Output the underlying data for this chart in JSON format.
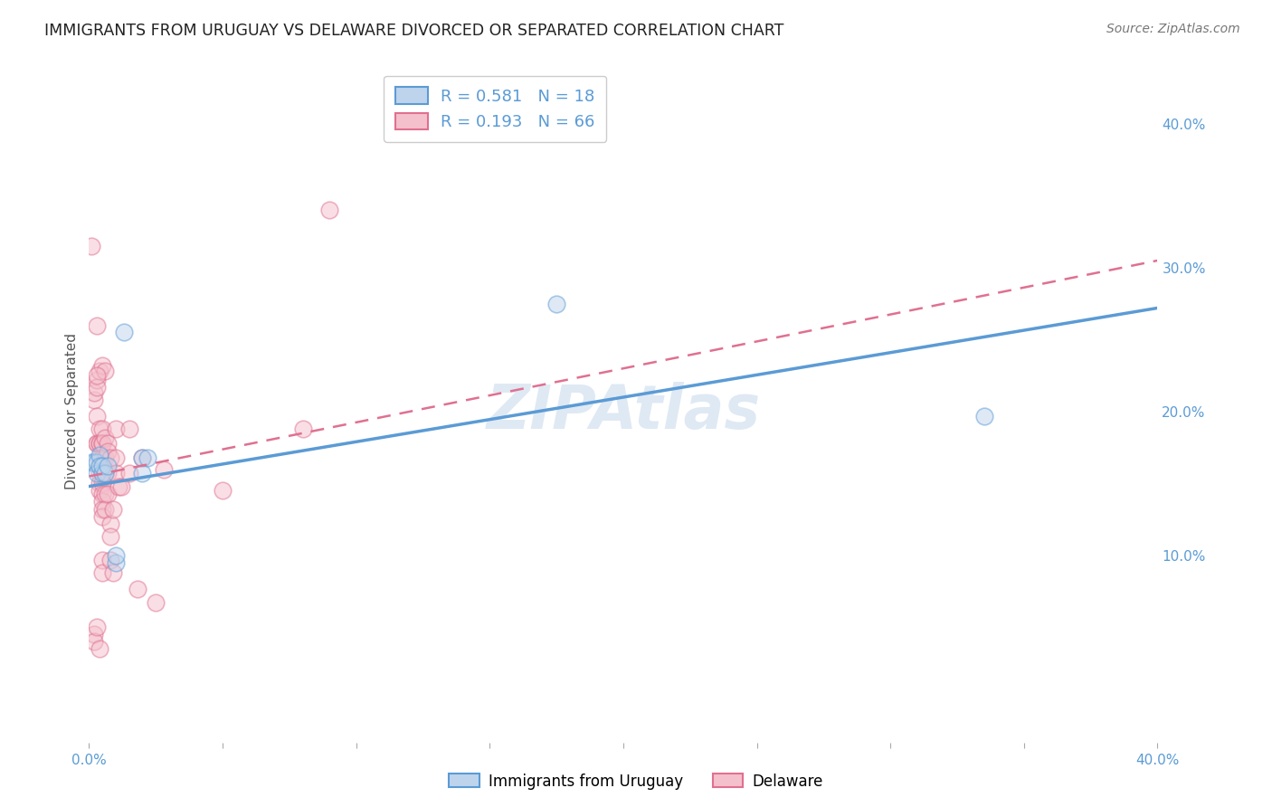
{
  "title": "IMMIGRANTS FROM URUGUAY VS DELAWARE DIVORCED OR SEPARATED CORRELATION CHART",
  "source": "Source: ZipAtlas.com",
  "ylabel": "Divorced or Separated",
  "xlim": [
    0.0,
    0.4
  ],
  "ylim": [
    -0.03,
    0.43
  ],
  "x_ticks": [
    0.0,
    0.05,
    0.1,
    0.15,
    0.2,
    0.25,
    0.3,
    0.35,
    0.4
  ],
  "y_ticks_right": [
    0.1,
    0.2,
    0.3,
    0.4
  ],
  "y_tick_labels_right": [
    "10.0%",
    "20.0%",
    "30.0%",
    "40.0%"
  ],
  "watermark": "ZIPAtlas",
  "blue_scatter": [
    [
      0.001,
      0.165
    ],
    [
      0.002,
      0.165
    ],
    [
      0.003,
      0.165
    ],
    [
      0.003,
      0.157
    ],
    [
      0.004,
      0.17
    ],
    [
      0.004,
      0.162
    ],
    [
      0.005,
      0.157
    ],
    [
      0.005,
      0.162
    ],
    [
      0.006,
      0.157
    ],
    [
      0.007,
      0.162
    ],
    [
      0.01,
      0.095
    ],
    [
      0.01,
      0.1
    ],
    [
      0.013,
      0.255
    ],
    [
      0.02,
      0.168
    ],
    [
      0.02,
      0.157
    ],
    [
      0.022,
      0.168
    ],
    [
      0.175,
      0.275
    ],
    [
      0.335,
      0.197
    ]
  ],
  "pink_scatter": [
    [
      0.001,
      0.315
    ],
    [
      0.002,
      0.208
    ],
    [
      0.002,
      0.213
    ],
    [
      0.003,
      0.222
    ],
    [
      0.003,
      0.217
    ],
    [
      0.003,
      0.197
    ],
    [
      0.003,
      0.178
    ],
    [
      0.003,
      0.178
    ],
    [
      0.004,
      0.228
    ],
    [
      0.004,
      0.188
    ],
    [
      0.004,
      0.178
    ],
    [
      0.004,
      0.178
    ],
    [
      0.004,
      0.168
    ],
    [
      0.004,
      0.162
    ],
    [
      0.004,
      0.157
    ],
    [
      0.004,
      0.15
    ],
    [
      0.004,
      0.145
    ],
    [
      0.005,
      0.232
    ],
    [
      0.005,
      0.188
    ],
    [
      0.005,
      0.178
    ],
    [
      0.005,
      0.178
    ],
    [
      0.005,
      0.168
    ],
    [
      0.005,
      0.157
    ],
    [
      0.005,
      0.15
    ],
    [
      0.005,
      0.143
    ],
    [
      0.005,
      0.138
    ],
    [
      0.005,
      0.132
    ],
    [
      0.005,
      0.127
    ],
    [
      0.005,
      0.097
    ],
    [
      0.005,
      0.088
    ],
    [
      0.006,
      0.228
    ],
    [
      0.006,
      0.182
    ],
    [
      0.006,
      0.168
    ],
    [
      0.006,
      0.157
    ],
    [
      0.006,
      0.143
    ],
    [
      0.006,
      0.132
    ],
    [
      0.007,
      0.178
    ],
    [
      0.007,
      0.172
    ],
    [
      0.007,
      0.157
    ],
    [
      0.007,
      0.143
    ],
    [
      0.008,
      0.168
    ],
    [
      0.008,
      0.122
    ],
    [
      0.008,
      0.113
    ],
    [
      0.008,
      0.097
    ],
    [
      0.009,
      0.132
    ],
    [
      0.009,
      0.088
    ],
    [
      0.01,
      0.188
    ],
    [
      0.01,
      0.168
    ],
    [
      0.01,
      0.157
    ],
    [
      0.011,
      0.148
    ],
    [
      0.012,
      0.148
    ],
    [
      0.015,
      0.188
    ],
    [
      0.015,
      0.157
    ],
    [
      0.018,
      0.077
    ],
    [
      0.02,
      0.168
    ],
    [
      0.025,
      0.067
    ],
    [
      0.028,
      0.16
    ],
    [
      0.05,
      0.145
    ],
    [
      0.08,
      0.188
    ],
    [
      0.09,
      0.34
    ],
    [
      0.003,
      0.26
    ],
    [
      0.003,
      0.225
    ],
    [
      0.002,
      0.045
    ],
    [
      0.002,
      0.04
    ],
    [
      0.003,
      0.05
    ],
    [
      0.004,
      0.035
    ]
  ],
  "blue_line_x": [
    0.0,
    0.4
  ],
  "blue_line_y": [
    0.148,
    0.272
  ],
  "pink_line_x": [
    0.0,
    0.4
  ],
  "pink_line_y": [
    0.155,
    0.305
  ],
  "scatter_size": 180,
  "scatter_alpha": 0.5,
  "scatter_linewidth": 1.2,
  "blue_color": "#5b9bd5",
  "pink_color": "#e07090",
  "blue_fill": "#bed4ed",
  "pink_fill": "#f4c0cc",
  "background_color": "#ffffff",
  "grid_color": "#bbbbbb",
  "title_fontsize": 12.5,
  "axis_label_fontsize": 11,
  "tick_fontsize": 11,
  "source_fontsize": 10,
  "watermark_fontsize": 48,
  "watermark_color": "#b8cfe8",
  "watermark_alpha": 0.45,
  "legend_blue_label": "R = 0.581   N = 18",
  "legend_pink_label": "R = 0.193   N = 66",
  "bottom_legend_blue": "Immigrants from Uruguay",
  "bottom_legend_pink": "Delaware"
}
